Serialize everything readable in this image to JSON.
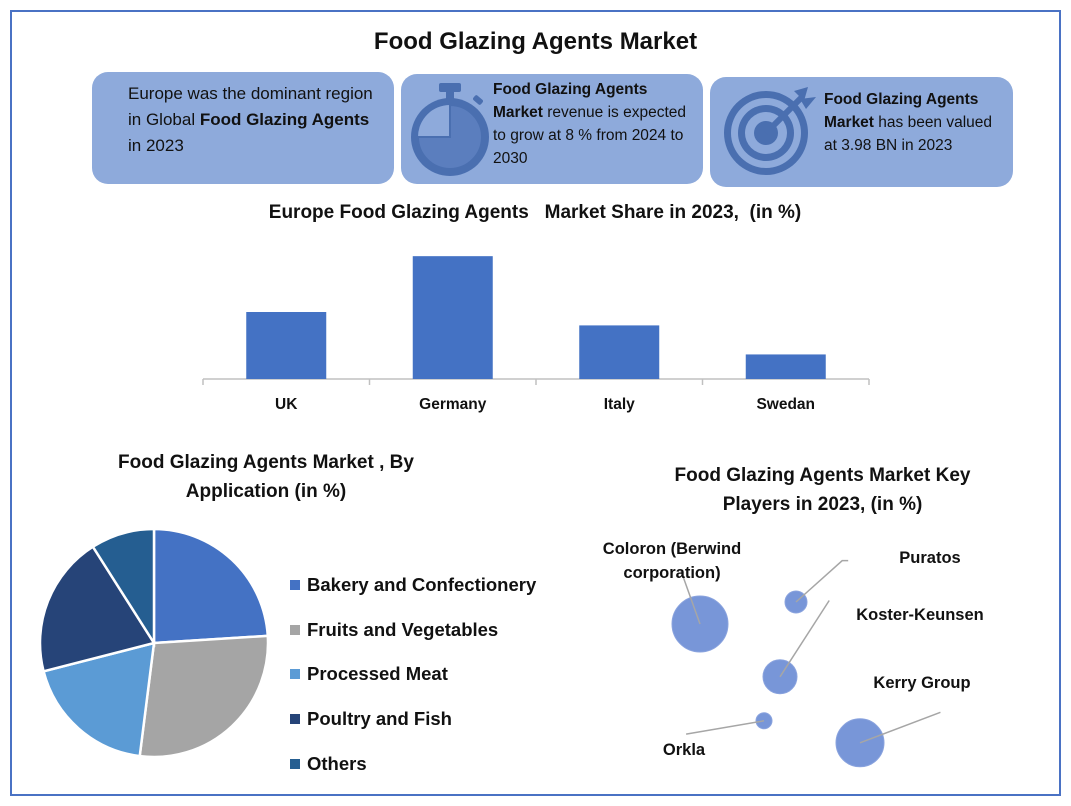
{
  "title": "Food Glazing Agents Market",
  "cards": {
    "c1": {
      "pre": "Europe was the dominant region in Global ",
      "bold": "Food Glazing Agents",
      "post": " in 2023"
    },
    "c2": {
      "bold": "Food Glazing Agents Market",
      "post": " revenue is expected to grow at 8 % from 2024 to 2030",
      "icon": "stopwatch-icon"
    },
    "c3": {
      "bold": "Food Glazing Agents Market",
      "post": " has been valued at 3.98 BN in 2023",
      "icon": "target-icon"
    }
  },
  "colors": {
    "bar": "#4472c4",
    "card": "#8eaadb",
    "icon": "#4a6fb0",
    "bubble": "#7896d8",
    "pie": [
      "#4472c4",
      "#a5a5a5",
      "#5b9bd5",
      "#264478",
      "#255e91"
    ]
  },
  "chart_data": [
    {
      "type": "bar",
      "title": "Europe Food Glazing Agents   Market Share in 2023,  (in %)",
      "categories": [
        "UK",
        "Germany",
        "Italy",
        "Swedan"
      ],
      "values": [
        30,
        55,
        24,
        11
      ],
      "ylim": [
        0,
        60
      ],
      "xlabel": "",
      "ylabel": "",
      "grid": false,
      "legend": "none"
    },
    {
      "type": "pie",
      "title": "Food Glazing Agents  Market , By Application  (in %)",
      "categories": [
        "Bakery and Confectionery",
        "Fruits and Vegetables",
        "Processed Meat",
        "Poultry and Fish",
        "Others"
      ],
      "values": [
        24,
        28,
        19,
        20,
        9
      ],
      "legend": "right"
    },
    {
      "type": "scatter",
      "title": "Food Glazing Agents Market Key Players in 2023, (in %)",
      "series": [
        {
          "name": "Coloron (Berwind corporation)",
          "x": 2.0,
          "y": 4.0,
          "size": 28
        },
        {
          "name": "Puratos",
          "x": 3.2,
          "y": 4.5,
          "size": 11
        },
        {
          "name": "Koster-Keunsen",
          "x": 3.0,
          "y": 2.8,
          "size": 17
        },
        {
          "name": "Orkla",
          "x": 2.8,
          "y": 1.8,
          "size": 8
        },
        {
          "name": "Kerry Group",
          "x": 4.0,
          "y": 1.3,
          "size": 24
        }
      ],
      "legend": "data-labels"
    }
  ]
}
